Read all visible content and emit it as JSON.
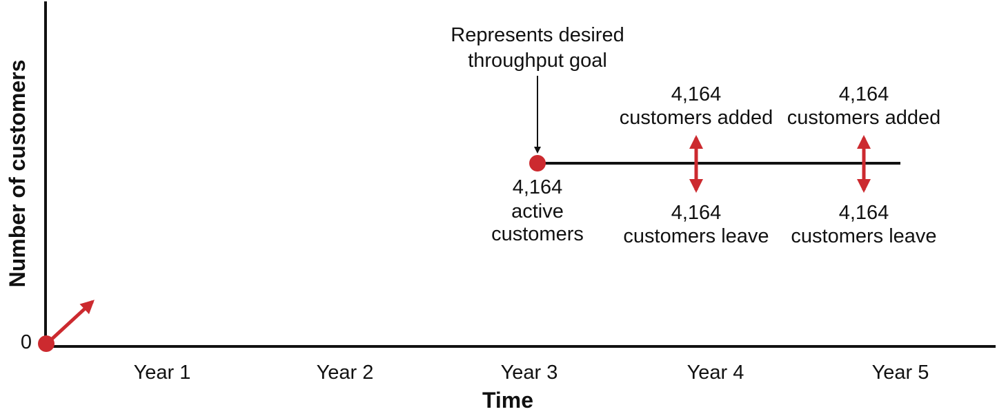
{
  "axes": {
    "x_title": "Time",
    "y_title": "Number of customers",
    "y_origin_label": "0",
    "x_ticks": [
      "Year 1",
      "Year 2",
      "Year 3",
      "Year 4",
      "Year 5"
    ]
  },
  "callouts": {
    "goal_line1": "Represents desired",
    "goal_line2": "throughput goal",
    "active_line1": "4,164",
    "active_line2": "active",
    "active_line3": "customers",
    "added_1_line1": "4,164",
    "added_1_line2": "customers added",
    "leave_1_line1": "4,164",
    "leave_1_line2": "customers leave",
    "added_2_line1": "4,164",
    "added_2_line2": "customers added",
    "leave_2_line1": "4,164",
    "leave_2_line2": "customers leave"
  },
  "colors": {
    "accent": "#cc2a2f",
    "ink": "#111111"
  }
}
